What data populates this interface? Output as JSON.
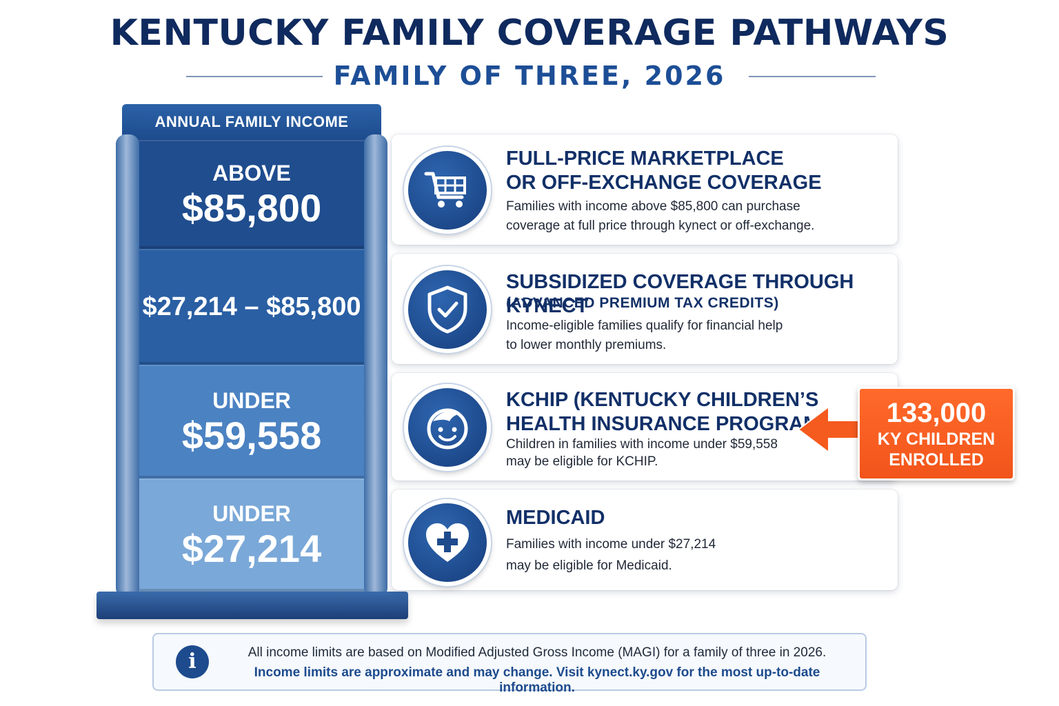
{
  "header": {
    "title": "KENTUCKY FAMILY COVERAGE PATHWAYS",
    "subtitle": "FAMILY OF THREE, 2026"
  },
  "income_column": {
    "header": "ANNUAL FAMILY INCOME",
    "tiers": [
      {
        "line1": "ABOVE",
        "line2": "$85,800",
        "color": "#1f4d8e"
      },
      {
        "line1": "",
        "line2": "$27,214 – $85,800",
        "color": "#2a5fa3"
      },
      {
        "line1": "UNDER",
        "line2": "$59,558",
        "color": "#4b82c2"
      },
      {
        "line1": "UNDER",
        "line2": "$27,214",
        "color": "#7aa8d8"
      }
    ]
  },
  "pathways": [
    {
      "icon": "shopping-cart-icon",
      "title_line1": "FULL-PRICE MARKETPLACE",
      "title_line2": "OR OFF-EXCHANGE COVERAGE",
      "subtitle": "",
      "desc_line1": "Families with income above $85,800 can purchase",
      "desc_line2": "coverage at full price through kynect or off-exchange."
    },
    {
      "icon": "shield-check-icon",
      "title_line1": "SUBSIDIZED COVERAGE THROUGH KYNECT",
      "title_line2": "",
      "subtitle": "(ADVANCED PREMIUM TAX CREDITS)",
      "desc_line1": "Income-eligible families qualify for financial help",
      "desc_line2": "to lower monthly premiums."
    },
    {
      "icon": "child-face-icon",
      "title_line1": "KCHIP (KENTUCKY CHILDREN’S",
      "title_line2": "HEALTH INSURANCE PROGRAM)",
      "subtitle": "",
      "desc_line1": "Children in families with income under $59,558",
      "desc_line2": "may be eligible for KCHIP."
    },
    {
      "icon": "heart-plus-icon",
      "title_line1": "MEDICAID",
      "title_line2": "",
      "subtitle": "",
      "desc_line1": "Families with income under $27,214",
      "desc_line2": "may be eligible for Medicaid."
    }
  ],
  "callout": {
    "number": "133,000",
    "label_line1": "KY CHILDREN",
    "label_line2": "ENROLLED",
    "color": "#f55a1e"
  },
  "footer": {
    "icon": "info-icon",
    "line1": "All income limits are based on Modified Adjusted Gross Income (MAGI) for a family of three in 2026.",
    "line2": "Income limits are approximate and may change. Visit kynect.ky.gov for the most up-to-date information."
  }
}
